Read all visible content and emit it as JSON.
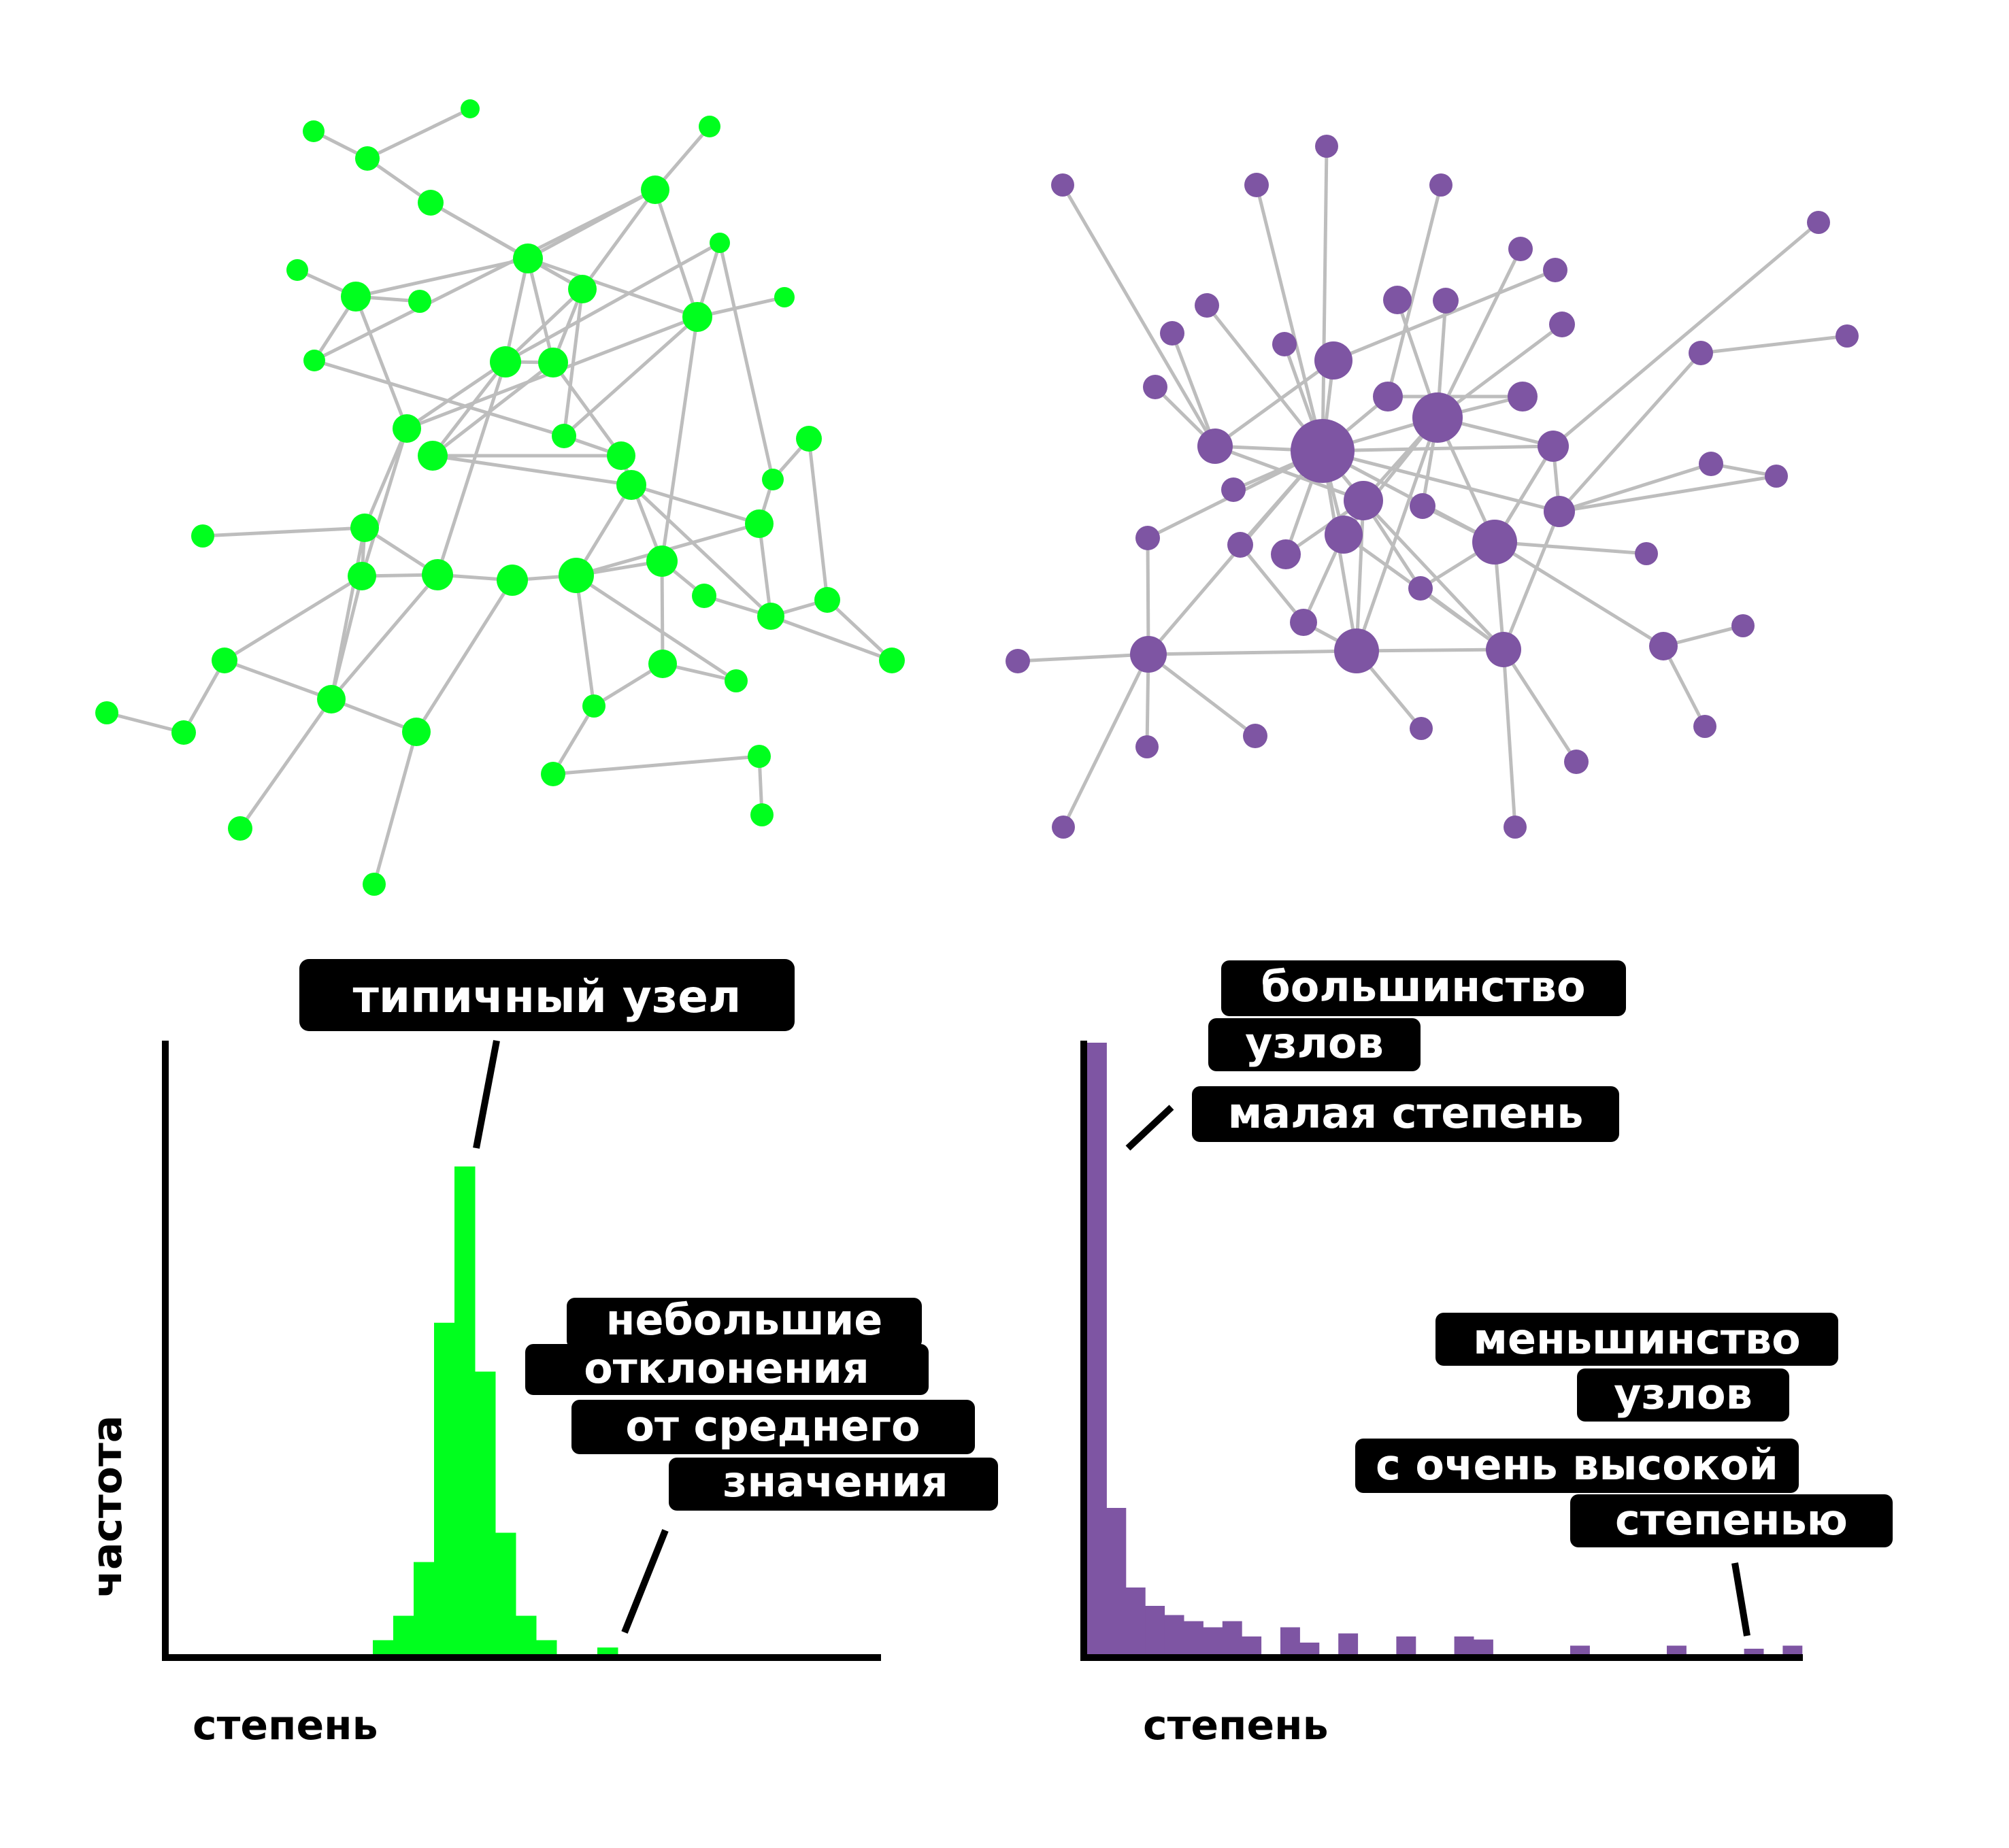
{
  "colors": {
    "green": "#00ff1e",
    "purple": "#7e55a3",
    "edge": "#bdbdbd",
    "axis": "#000000",
    "label_bg": "#000000",
    "label_text": "#ffffff"
  },
  "left": {
    "annotations": {
      "typical": [
        "типичный узел"
      ],
      "deviations": [
        "небольшие",
        "отклонения",
        "от среднего",
        "значения"
      ]
    },
    "y_label": "частота",
    "x_label": "степень"
  },
  "right": {
    "annotations": {
      "most": [
        "большинство",
        "узлов",
        "малая степень"
      ],
      "few": [
        "меньшинство",
        "узлов",
        "с очень высокой",
        "степенью"
      ]
    },
    "x_label": "степень"
  },
  "chart_data": [
    {
      "type": "bar",
      "series": [
        {
          "color": "#00ff1e",
          "x": [
            1,
            2,
            3,
            4,
            5,
            6,
            7,
            8,
            9,
            10,
            11,
            12
          ],
          "values": [
            0.03,
            0.08,
            0.19,
            0.68,
            1.0,
            0.58,
            0.25,
            0.08,
            0.03,
            0,
            0,
            0.015
          ]
        }
      ]
    },
    {
      "type": "bar",
      "series": [
        {
          "color": "#7e55a3",
          "x": [
            1,
            2,
            3,
            4,
            5,
            6,
            7,
            8,
            9,
            10,
            11,
            12,
            13,
            14,
            15,
            16,
            17,
            18,
            19,
            20,
            21,
            22,
            23,
            24,
            25,
            26,
            27,
            28,
            29,
            30,
            31,
            32,
            33,
            34,
            35,
            36,
            37
          ],
          "values": [
            1.0,
            0.24,
            0.11,
            0.08,
            0.065,
            0.055,
            0.045,
            0.055,
            0.03,
            0,
            0.045,
            0.02,
            0,
            0.035,
            0,
            0,
            0.03,
            0,
            0,
            0.03,
            0.025,
            0,
            0,
            0,
            0,
            0.015,
            0,
            0,
            0,
            0,
            0.015,
            0,
            0,
            0,
            0.01,
            0,
            0.015
          ]
        }
      ]
    }
  ]
}
